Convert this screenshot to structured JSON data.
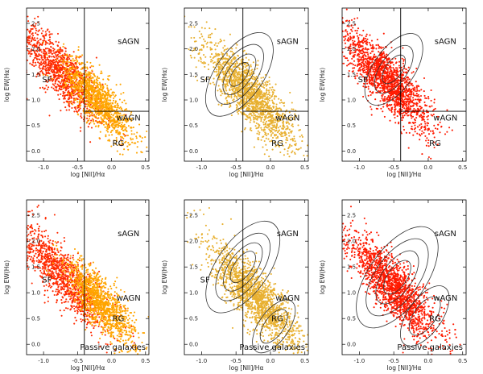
{
  "chart_data": [
    {
      "type": "scatter",
      "style": "density-overlay",
      "xlabel": "log [NII]/Hα",
      "ylabel": "log EW(Hα)",
      "xlim": [
        -1.25,
        0.55
      ],
      "ylim": [
        -0.2,
        2.8
      ],
      "xticks": [
        "-1.0",
        "-0.5",
        "0.0",
        "0.5"
      ],
      "yticks": [
        "0.0",
        "0.5",
        "1.0",
        "1.5",
        "2.0",
        "2.5"
      ],
      "dividers": {
        "x": -0.4,
        "y": 0.778
      },
      "regions": [
        {
          "label": "SF",
          "x": -0.95,
          "y": 1.35
        },
        {
          "label": "sAGN",
          "x": 0.25,
          "y": 2.1
        },
        {
          "label": "wAGN",
          "x": 0.25,
          "y": 0.6
        },
        {
          "label": "RG",
          "x": 0.1,
          "y": 0.1
        }
      ],
      "layers": [
        {
          "name": "SF",
          "color": "#ff2a00",
          "x": -0.75,
          "y": 1.55
        },
        {
          "name": "AGN",
          "color": "#ffa500",
          "x": -0.2,
          "y": 1.0
        }
      ],
      "contours": []
    },
    {
      "type": "scatter",
      "style": "density-overlay",
      "xlabel": "log [NII]/Hα",
      "ylabel": "log EW(Hα)",
      "xlim": [
        -1.25,
        0.55
      ],
      "ylim": [
        -0.2,
        2.8
      ],
      "xticks": [
        "-1.0",
        "-0.5",
        "0.0",
        "0.5"
      ],
      "yticks": [
        "0.0",
        "0.5",
        "1.0",
        "1.5",
        "2.0",
        "2.5"
      ],
      "dividers": {
        "x": -0.4,
        "y": 0.778
      },
      "regions": [
        {
          "label": "SF",
          "x": -0.95,
          "y": 1.35
        },
        {
          "label": "sAGN",
          "x": 0.25,
          "y": 2.1
        },
        {
          "label": "wAGN",
          "x": 0.25,
          "y": 0.6
        },
        {
          "label": "RG",
          "x": 0.1,
          "y": 0.1
        }
      ],
      "layers": [
        {
          "name": "AGN",
          "color": "#e8b030",
          "x": -0.3,
          "y": 1.1
        }
      ],
      "contours": [
        {
          "cx": -0.45,
          "cy": 1.5,
          "levels": [
            0.35,
            0.25,
            0.17,
            0.1
          ]
        }
      ]
    },
    {
      "type": "scatter",
      "style": "density-overlay",
      "xlabel": "log [NII]/Hα",
      "ylabel": "log EW(Hα)",
      "xlim": [
        -1.25,
        0.55
      ],
      "ylim": [
        -0.2,
        2.8
      ],
      "xticks": [
        "-1.0",
        "-0.5",
        "0.0",
        "0.5"
      ],
      "yticks": [
        "0.0",
        "0.5",
        "1.0",
        "1.5",
        "2.0",
        "2.5"
      ],
      "dividers": {
        "x": -0.4,
        "y": 0.778
      },
      "regions": [
        {
          "label": "SF",
          "x": -0.95,
          "y": 1.35
        },
        {
          "label": "sAGN",
          "x": 0.25,
          "y": 2.1
        },
        {
          "label": "wAGN",
          "x": 0.25,
          "y": 0.6
        },
        {
          "label": "RG",
          "x": 0.1,
          "y": 0.1
        }
      ],
      "layers": [
        {
          "name": "SF",
          "color": "#ff1a00",
          "x": -0.6,
          "y": 1.4
        }
      ],
      "contours": [
        {
          "cx": -0.5,
          "cy": 1.6,
          "levels": [
            0.3,
            0.2,
            0.12
          ]
        }
      ]
    },
    {
      "type": "scatter",
      "style": "density-overlay",
      "xlabel": "log [NII]/Hα",
      "ylabel": "log EW(Hα)",
      "xlim": [
        -1.25,
        0.55
      ],
      "ylim": [
        -0.2,
        2.8
      ],
      "xticks": [
        "-1.0",
        "-0.5",
        "0.0",
        "0.5"
      ],
      "yticks": [
        "0.0",
        "0.5",
        "1.0",
        "1.5",
        "2.0",
        "2.5"
      ],
      "dividers": {
        "x": -0.4
      },
      "regions": [
        {
          "label": "SF",
          "x": -0.95,
          "y": 1.2
        },
        {
          "label": "sAGN",
          "x": 0.25,
          "y": 2.1
        },
        {
          "label": "wAGN",
          "x": 0.25,
          "y": 0.85
        },
        {
          "label": "RG",
          "x": 0.1,
          "y": 0.45
        }
      ],
      "layers": [
        {
          "name": "SF",
          "color": "#ff2a00",
          "x": -0.7,
          "y": 1.3
        },
        {
          "name": "AGN",
          "color": "#ffa500",
          "x": -0.15,
          "y": 0.8
        }
      ],
      "contours": [],
      "annotation": "Passive galaxies"
    },
    {
      "type": "scatter",
      "style": "density-overlay",
      "xlabel": "log [NII]/Hα",
      "ylabel": "log EW(Hα)",
      "xlim": [
        -1.25,
        0.55
      ],
      "ylim": [
        -0.2,
        2.8
      ],
      "xticks": [
        "-1.0",
        "-0.5",
        "0.0",
        "0.5"
      ],
      "yticks": [
        "0.0",
        "0.5",
        "1.0",
        "1.5",
        "2.0",
        "2.5"
      ],
      "dividers": {
        "x": -0.4
      },
      "regions": [
        {
          "label": "SF",
          "x": -0.95,
          "y": 1.2
        },
        {
          "label": "sAGN",
          "x": 0.25,
          "y": 2.1
        },
        {
          "label": "wAGN",
          "x": 0.25,
          "y": 0.85
        },
        {
          "label": "RG",
          "x": 0.1,
          "y": 0.45
        }
      ],
      "layers": [
        {
          "name": "AGN",
          "color": "#e8b030",
          "x": -0.2,
          "y": 0.9
        }
      ],
      "contours": [
        {
          "cx": -0.4,
          "cy": 1.5,
          "levels": [
            0.38,
            0.28,
            0.2,
            0.13
          ]
        },
        {
          "cx": 0.05,
          "cy": 0.35,
          "levels": [
            0.22,
            0.14
          ]
        }
      ],
      "annotation": "Passive galaxies"
    },
    {
      "type": "scatter",
      "style": "density-overlay",
      "xlabel": "log [NII]/Hα",
      "ylabel": "log EW(Hα)",
      "xlim": [
        -1.25,
        0.55
      ],
      "ylim": [
        -0.2,
        2.8
      ],
      "xticks": [
        "-1.0",
        "-0.5",
        "0.0",
        "0.5"
      ],
      "yticks": [
        "0.0",
        "0.5",
        "1.0",
        "1.5",
        "2.0",
        "2.5"
      ],
      "dividers": {},
      "regions": [
        {
          "label": "sAGN",
          "x": 0.25,
          "y": 2.1
        },
        {
          "label": "wAGN",
          "x": 0.25,
          "y": 0.85
        },
        {
          "label": "RG",
          "x": 0.1,
          "y": 0.45
        }
      ],
      "layers": [
        {
          "name": "SF",
          "color": "#ff1a00",
          "x": -0.5,
          "y": 1.1
        }
      ],
      "contours": [
        {
          "cx": -0.45,
          "cy": 1.3,
          "levels": [
            0.42,
            0.32,
            0.22,
            0.14
          ]
        },
        {
          "cx": -0.05,
          "cy": 0.55,
          "levels": [
            0.25,
            0.16
          ]
        }
      ],
      "annotation": "Passive galaxies"
    }
  ]
}
